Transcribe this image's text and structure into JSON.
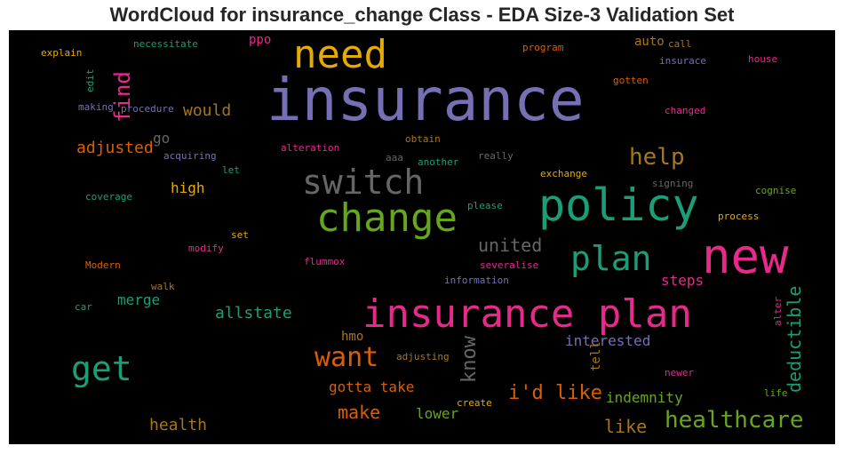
{
  "title": "WordCloud for insurance_change Class - EDA Size-3 Validation Set",
  "chart_data": {
    "type": "wordcloud",
    "title": "WordCloud for insurance_change Class - EDA Size-3 Validation Set",
    "background": "#000000",
    "words": [
      {
        "text": "insurance",
        "color": "#7570b3"
      },
      {
        "text": "insurance plan",
        "color": "#e7298a"
      },
      {
        "text": "new",
        "color": "#e7298a"
      },
      {
        "text": "policy",
        "color": "#1b9e77"
      },
      {
        "text": "change",
        "color": "#66a61e"
      },
      {
        "text": "need",
        "color": "#e6ab02"
      },
      {
        "text": "switch",
        "color": "#666666"
      },
      {
        "text": "plan",
        "color": "#1b9e77"
      },
      {
        "text": "get",
        "color": "#1b9e77"
      },
      {
        "text": "want",
        "color": "#d95f02"
      },
      {
        "text": "healthcare",
        "color": "#66a61e"
      },
      {
        "text": "help",
        "color": "#a6761d"
      },
      {
        "text": "i'd like",
        "color": "#d95f02"
      },
      {
        "text": "find",
        "color": "#e7298a"
      },
      {
        "text": "united",
        "color": "#666666"
      },
      {
        "text": "deductible",
        "color": "#1b9e77"
      },
      {
        "text": "make",
        "color": "#d95f02"
      },
      {
        "text": "know",
        "color": "#666666"
      },
      {
        "text": "health",
        "color": "#a6761d"
      },
      {
        "text": "like",
        "color": "#a6761d"
      },
      {
        "text": "allstate",
        "color": "#1b9e77"
      },
      {
        "text": "would",
        "color": "#a6761d"
      },
      {
        "text": "adjusted",
        "color": "#d95f02"
      },
      {
        "text": "interested",
        "color": "#7570b3"
      },
      {
        "text": "gotta take",
        "color": "#d95f02"
      },
      {
        "text": "lower",
        "color": "#66a61e"
      },
      {
        "text": "indemnity",
        "color": "#66a61e"
      },
      {
        "text": "merge",
        "color": "#1b9e77"
      },
      {
        "text": "steps",
        "color": "#e7298a"
      },
      {
        "text": "high",
        "color": "#e6ab02"
      },
      {
        "text": "auto",
        "color": "#a6761d"
      },
      {
        "text": "go",
        "color": "#666666"
      },
      {
        "text": "hmo",
        "color": "#a6761d"
      },
      {
        "text": "ppo",
        "color": "#e7298a"
      },
      {
        "text": "tell",
        "color": "#a6761d"
      },
      {
        "text": "necessitate",
        "color": "#1b9e77"
      },
      {
        "text": "explain",
        "color": "#e6ab02"
      },
      {
        "text": "edit",
        "color": "#1b9e77"
      },
      {
        "text": "making",
        "color": "#7570b3"
      },
      {
        "text": "procedure",
        "color": "#7570b3"
      },
      {
        "text": "acquiring",
        "color": "#7570b3"
      },
      {
        "text": "let",
        "color": "#1b9e77"
      },
      {
        "text": "coverage",
        "color": "#1b9e77"
      },
      {
        "text": "set",
        "color": "#e6ab02"
      },
      {
        "text": "modify",
        "color": "#e7298a"
      },
      {
        "text": "Modern",
        "color": "#d95f02"
      },
      {
        "text": "walk",
        "color": "#a6761d"
      },
      {
        "text": "car",
        "color": "#1b9e77"
      },
      {
        "text": "alteration",
        "color": "#e7298a"
      },
      {
        "text": "aaa",
        "color": "#666666"
      },
      {
        "text": "another",
        "color": "#1b9e77"
      },
      {
        "text": "obtain",
        "color": "#a6761d"
      },
      {
        "text": "really",
        "color": "#666666"
      },
      {
        "text": "please",
        "color": "#1b9e77"
      },
      {
        "text": "flummox",
        "color": "#e7298a"
      },
      {
        "text": "severalise",
        "color": "#e7298a"
      },
      {
        "text": "information",
        "color": "#7570b3"
      },
      {
        "text": "adjusting",
        "color": "#a6761d"
      },
      {
        "text": "create",
        "color": "#e6ab02"
      },
      {
        "text": "program",
        "color": "#d95f02"
      },
      {
        "text": "call",
        "color": "#a6761d"
      },
      {
        "text": "insurace",
        "color": "#7570b3"
      },
      {
        "text": "house",
        "color": "#e7298a"
      },
      {
        "text": "gotten",
        "color": "#d95f02"
      },
      {
        "text": "changed",
        "color": "#e7298a"
      },
      {
        "text": "exchange",
        "color": "#e6ab02"
      },
      {
        "text": "signing",
        "color": "#666666"
      },
      {
        "text": "cognise",
        "color": "#66a61e"
      },
      {
        "text": "process",
        "color": "#e6ab02"
      },
      {
        "text": "alter",
        "color": "#e7298a"
      },
      {
        "text": "newer",
        "color": "#e7298a"
      },
      {
        "text": "life",
        "color": "#66a61e"
      }
    ]
  }
}
